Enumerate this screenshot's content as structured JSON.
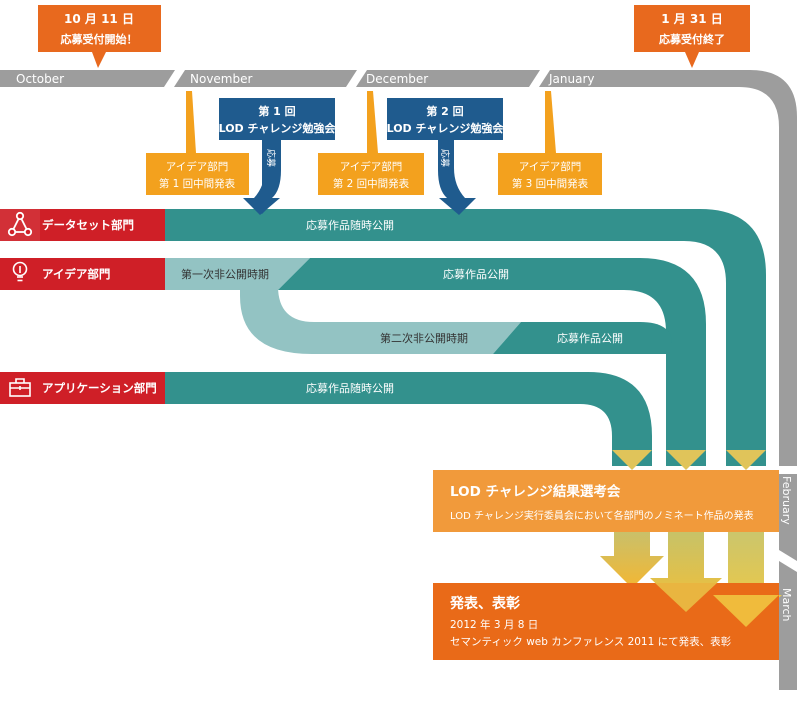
{
  "months": {
    "october": "October",
    "november": "November",
    "december": "December",
    "january": "January",
    "february": "February",
    "march": "March"
  },
  "callouts": {
    "start": {
      "line1": "10 月 11 日",
      "line2": "応募受付開始！"
    },
    "end": {
      "line1": "1 月 31 日",
      "line2": "応募受付終了"
    }
  },
  "study_sessions": [
    {
      "line1": "第 1 回",
      "line2": "LOD チャレンジ勉強会",
      "arrow_label": "応募"
    },
    {
      "line1": "第 2 回",
      "line2": "LOD チャレンジ勉強会",
      "arrow_label": "応募"
    }
  ],
  "idea_midterms": [
    {
      "line1": "アイデア部門",
      "line2": "第 1 回中間発表"
    },
    {
      "line1": "アイデア部門",
      "line2": "第 2 回中間発表"
    },
    {
      "line1": "アイデア部門",
      "line2": "第 3 回中間発表"
    }
  ],
  "categories": {
    "dataset": "データセット部門",
    "idea": "アイデア部門",
    "application": "アプリケーション部門"
  },
  "bands": {
    "dataset_public": "応募作品随時公開",
    "idea_private_1": "第一次非公開時期",
    "idea_public_1": "応募作品公開",
    "idea_private_2": "第二次非公開時期",
    "idea_public_2": "応募作品公開",
    "application_public": "応募作品随時公開"
  },
  "selection": {
    "title": "LOD チャレンジ結果選考会",
    "subtitle": "LOD チャレンジ実行委員会において各部門のノミネート作品の発表"
  },
  "announcement": {
    "title": "発表、表彰",
    "date": "2012 年 3 月 8 日",
    "detail": "セマンティック web カンファレンス 2011 にて発表、表彰"
  },
  "colors": {
    "timeline": "#9d9d9d",
    "callout_orange": "#e8691e",
    "midterm_orange": "#f3a11e",
    "study_blue": "#1f5b8e",
    "teal": "#33918d",
    "light_teal": "#93c3c3",
    "category_red": "#cf1f27",
    "selection_orange": "#f19a3b",
    "announce_orange": "#e96a18",
    "arrow_yellow": "#f4c23c"
  }
}
